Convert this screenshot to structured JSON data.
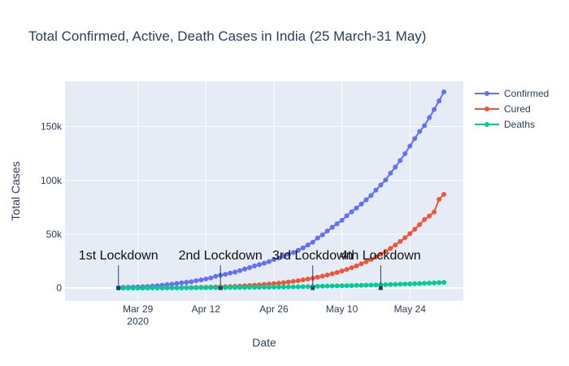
{
  "chart_data": {
    "type": "line",
    "title": "Total Confirmed, Active, Death Cases in India (25 March-31 May)",
    "xlabel": "Date",
    "ylabel": "Total Cases",
    "x_start": "2020-03-25",
    "x_end": "2020-05-31",
    "xlim": [
      "2020-03-14",
      "2020-06-04"
    ],
    "ylim": [
      -12000,
      192000
    ],
    "x_ticks": [
      {
        "date": "2020-03-29",
        "label": "Mar 29",
        "sublabel": "2020"
      },
      {
        "date": "2020-04-12",
        "label": "Apr 12"
      },
      {
        "date": "2020-04-26",
        "label": "Apr 26"
      },
      {
        "date": "2020-05-10",
        "label": "May 10"
      },
      {
        "date": "2020-05-24",
        "label": "May 24"
      }
    ],
    "y_ticks": [
      {
        "value": 0,
        "label": "0"
      },
      {
        "value": 50000,
        "label": "50k"
      },
      {
        "value": 100000,
        "label": "100k"
      },
      {
        "value": 150000,
        "label": "150k"
      }
    ],
    "series": [
      {
        "name": "Confirmed",
        "color": "#636efa",
        "values": [
          606,
          694,
          724,
          873,
          1024,
          1251,
          1397,
          1834,
          2069,
          2547,
          3072,
          3577,
          4281,
          4789,
          5274,
          5865,
          6761,
          7529,
          8447,
          9352,
          10815,
          11933,
          12759,
          13835,
          14792,
          16116,
          17656,
          18985,
          20471,
          21700,
          23077,
          24506,
          26496,
          27892,
          29435,
          31332,
          33050,
          35043,
          37336,
          39980,
          42533,
          46433,
          49391,
          52952,
          56342,
          59662,
          62939,
          67152,
          70756,
          74281,
          78003,
          81970,
          85940,
          90927,
          95698,
          100328,
          106750,
          112359,
          118447,
          124794,
          131868,
          138845,
          145380,
          150793,
          158333,
          165799,
          173763,
          182143
        ]
      },
      {
        "name": "Cured",
        "color": "#ef553b",
        "values": [
          42,
          50,
          67,
          84,
          96,
          120,
          144,
          158,
          181,
          210,
          240,
          285,
          325,
          378,
          420,
          480,
          550,
          640,
          740,
          850,
          970,
          1100,
          1260,
          1430,
          1620,
          1830,
          2060,
          2320,
          2600,
          2920,
          3270,
          3650,
          4070,
          4530,
          5030,
          5580,
          6180,
          6830,
          7540,
          8310,
          9150,
          10060,
          11040,
          12100,
          13250,
          14490,
          15840,
          17300,
          18880,
          20590,
          22430,
          24420,
          26560,
          28870,
          31340,
          34000,
          36860,
          39930,
          43230,
          46760,
          50550,
          54610,
          58950,
          63600,
          66900,
          70600,
          82370,
          86984
        ]
      },
      {
        "name": "Deaths",
        "color": "#00cc96",
        "values": [
          10,
          16,
          17,
          19,
          27,
          32,
          35,
          41,
          53,
          62,
          75,
          83,
          109,
          124,
          149,
          169,
          206,
          242,
          273,
          324,
          353,
          377,
          414,
          452,
          488,
          519,
          559,
          603,
          652,
          686,
          721,
          781,
          825,
          886,
          939,
          1008,
          1079,
          1154,
          1223,
          1301,
          1373,
          1568,
          1694,
          1783,
          1886,
          1981,
          2109,
          2206,
          2293,
          2415,
          2549,
          2649,
          2753,
          2872,
          3029,
          3156,
          3303,
          3435,
          3583,
          3720,
          3867,
          4021,
          4167,
          4337,
          4531,
          4706,
          4971,
          5164
        ]
      }
    ],
    "legend": {
      "position": "top-right"
    },
    "grid": true,
    "annotations": [
      {
        "text": "1st Lockdown",
        "date": "2020-03-25"
      },
      {
        "text": "2nd Lockdown",
        "date": "2020-04-15"
      },
      {
        "text": "3rd Lockdown",
        "date": "2020-05-04"
      },
      {
        "text": "4th Lockdown",
        "date": "2020-05-18"
      }
    ],
    "colors": {
      "plot_bg": "#e5ecf6",
      "grid": "#ffffff",
      "text": "#2a3f5f",
      "annotation_text": "#111111"
    }
  }
}
